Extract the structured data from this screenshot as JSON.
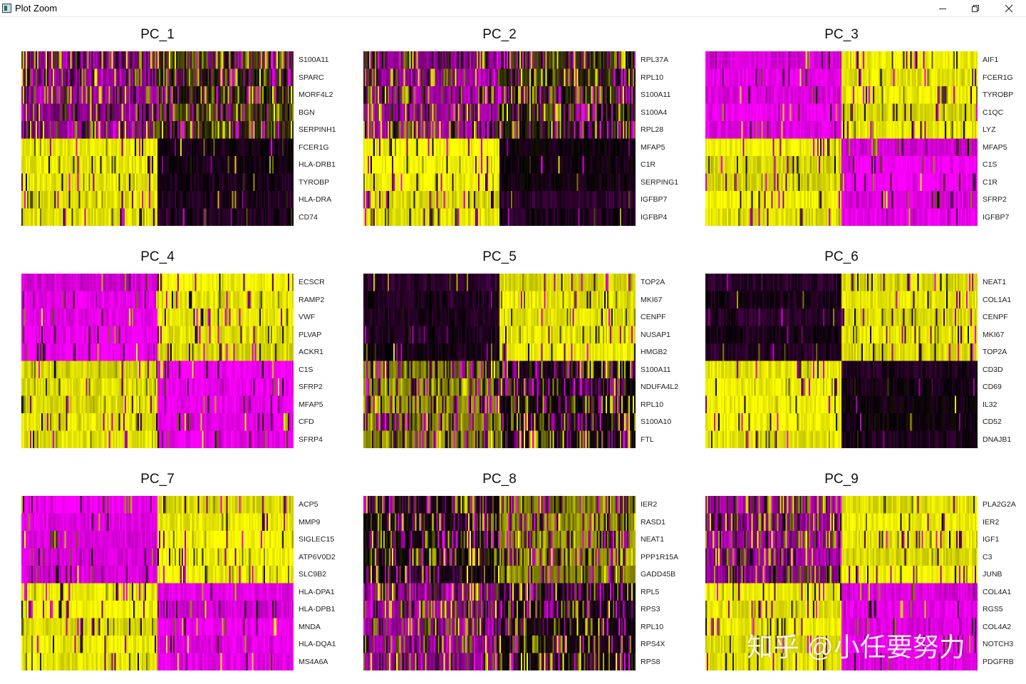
{
  "window": {
    "title": "Plot Zoom"
  },
  "watermark": "知乎 @小任要努力",
  "colors": {
    "low": "#ff00ff",
    "mid": "#000000",
    "high": "#ffff00"
  },
  "chart_data": [
    {
      "type": "heatmap",
      "title": "PC_1",
      "genes": [
        "S100A11",
        "SPARC",
        "MORF4L2",
        "BGN",
        "SERPINH1",
        "FCER1G",
        "HLA-DRB1",
        "TYROBP",
        "HLA-DRA",
        "CD74"
      ],
      "cell_groups": [
        "left",
        "right"
      ],
      "pattern": {
        "top_left": "mixed-magenta",
        "top_right": "mixed-dark-yellow",
        "bottom_left": "yellow",
        "bottom_right": "dark"
      }
    },
    {
      "type": "heatmap",
      "title": "PC_2",
      "genes": [
        "RPL37A",
        "RPL10",
        "S100A11",
        "S100A4",
        "RPL28",
        "MFAP5",
        "C1R",
        "SERPING1",
        "IGFBP7",
        "IGFBP4"
      ],
      "cell_groups": [
        "left",
        "right"
      ],
      "pattern": {
        "top_left": "mixed-magenta",
        "top_right": "mixed-dark-yellow",
        "bottom_left": "yellow",
        "bottom_right": "dark"
      }
    },
    {
      "type": "heatmap",
      "title": "PC_3",
      "genes": [
        "AIF1",
        "FCER1G",
        "TYROBP",
        "C1QC",
        "LYZ",
        "MFAP5",
        "C1S",
        "C1R",
        "SFRP2",
        "IGFBP7"
      ],
      "cell_groups": [
        "left",
        "right"
      ],
      "pattern": {
        "top_left": "magenta",
        "top_right": "yellow",
        "bottom_left": "yellow",
        "bottom_right": "magenta"
      }
    },
    {
      "type": "heatmap",
      "title": "PC_4",
      "genes": [
        "ECSCR",
        "RAMP2",
        "VWF",
        "PLVAP",
        "ACKR1",
        "C1S",
        "SFRP2",
        "MFAP5",
        "CFD",
        "SFRP4"
      ],
      "cell_groups": [
        "left",
        "right"
      ],
      "pattern": {
        "top_left": "magenta",
        "top_right": "yellow",
        "bottom_left": "yellow",
        "bottom_right": "magenta"
      }
    },
    {
      "type": "heatmap",
      "title": "PC_5",
      "genes": [
        "TOP2A",
        "MKI67",
        "CENPF",
        "NUSAP1",
        "HMGB2",
        "S100A11",
        "NDUFA4L2",
        "RPL10",
        "S100A10",
        "FTL"
      ],
      "cell_groups": [
        "left",
        "right"
      ],
      "pattern": {
        "top_left": "dark",
        "top_right": "yellow",
        "bottom_left": "mixed-yellow",
        "bottom_right": "mixed-dark"
      }
    },
    {
      "type": "heatmap",
      "title": "PC_6",
      "genes": [
        "NEAT1",
        "COL1A1",
        "CENPF",
        "MKI67",
        "TOP2A",
        "CD3D",
        "CD69",
        "IL32",
        "CD52",
        "DNAJB1"
      ],
      "cell_groups": [
        "left",
        "right"
      ],
      "pattern": {
        "top_left": "dark",
        "top_right": "yellow",
        "bottom_left": "yellow",
        "bottom_right": "dark"
      }
    },
    {
      "type": "heatmap",
      "title": "PC_7",
      "genes": [
        "ACP5",
        "MMP9",
        "SIGLEC15",
        "ATP6V0D2",
        "SLC9B2",
        "HLA-DPA1",
        "HLA-DPB1",
        "MNDA",
        "HLA-DQA1",
        "MS4A6A"
      ],
      "cell_groups": [
        "left",
        "right"
      ],
      "pattern": {
        "top_left": "magenta",
        "top_right": "yellow",
        "bottom_left": "yellow",
        "bottom_right": "magenta"
      }
    },
    {
      "type": "heatmap",
      "title": "PC_8",
      "genes": [
        "IER2",
        "RASD1",
        "NEAT1",
        "PPP1R15A",
        "GADD45B",
        "RPL5",
        "RPS3",
        "RPL10",
        "RPS4X",
        "RPS8"
      ],
      "cell_groups": [
        "left",
        "right"
      ],
      "pattern": {
        "top_left": "mixed-dark",
        "top_right": "mixed-yellow",
        "bottom_left": "mixed-magenta",
        "bottom_right": "mixed-dark"
      }
    },
    {
      "type": "heatmap",
      "title": "PC_9",
      "genes": [
        "PLA2G2A",
        "IER2",
        "IGF1",
        "C3",
        "JUNB",
        "COL4A1",
        "RGS5",
        "COL4A2",
        "NOTCH3",
        "PDGFRB"
      ],
      "cell_groups": [
        "left",
        "right"
      ],
      "pattern": {
        "top_left": "mixed-magenta",
        "top_right": "yellow",
        "bottom_left": "yellow",
        "bottom_right": "magenta"
      }
    }
  ]
}
